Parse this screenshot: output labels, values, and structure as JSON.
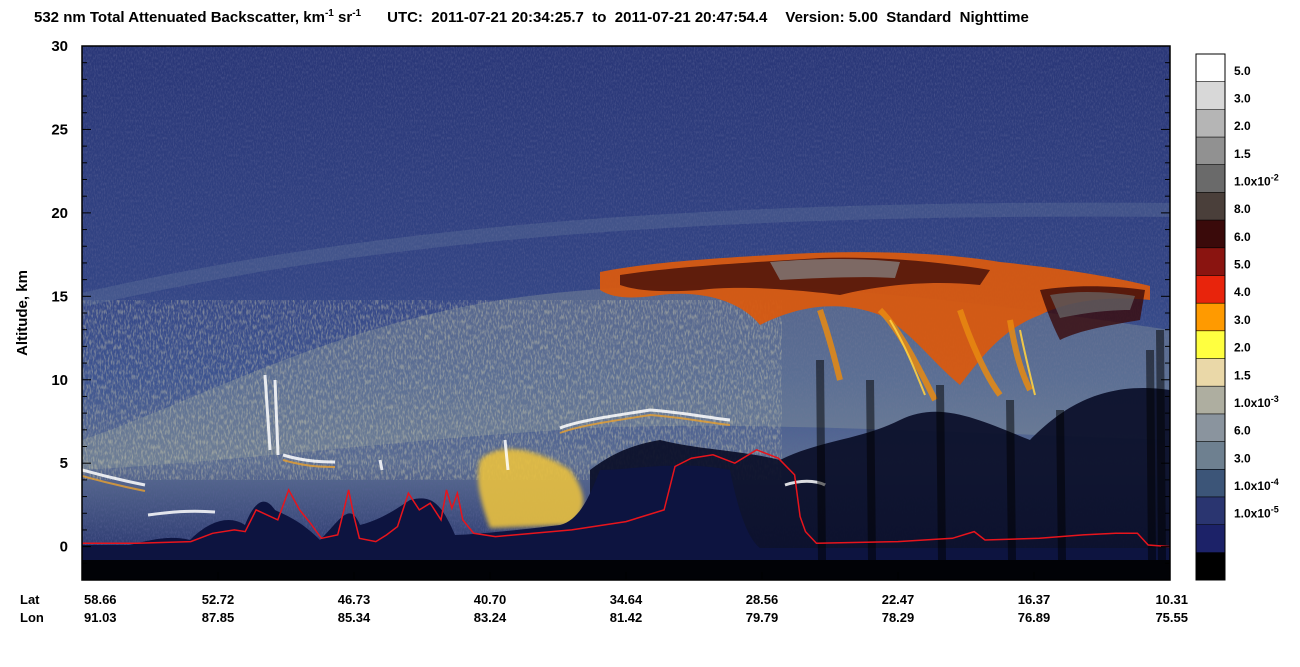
{
  "title": {
    "product_prefix": "532 nm Total Attenuated Backscatter, km",
    "unit_exp1": "-1",
    "unit_mid": " sr",
    "unit_exp2": "-1",
    "utc_label": "UTC:",
    "start_time": "2011-07-21 20:34:25.7",
    "to_word": "to",
    "end_time": "2011-07-21 20:47:54.4",
    "version_label": "Version: 5.00",
    "mode": "Standard",
    "time_of_day": "Nighttime"
  },
  "chart_data": {
    "type": "heatmap",
    "ylabel": "Altitude, km",
    "ylim": [
      -2,
      30
    ],
    "yticks": [
      0,
      5,
      10,
      15,
      20,
      25,
      30
    ],
    "ytick_labels": [
      "0",
      "5",
      "10",
      "15",
      "20",
      "25",
      "30"
    ],
    "x_row_labels": [
      "Lat",
      "Lon"
    ],
    "lat": [
      "58.66",
      "52.72",
      "46.73",
      "40.70",
      "34.64",
      "28.56",
      "22.47",
      "16.37",
      "10.31"
    ],
    "lon": [
      "91.03",
      "87.85",
      "85.34",
      "83.24",
      "81.42",
      "79.79",
      "78.29",
      "76.89",
      "75.55"
    ],
    "surface_line_color": "#e8141c",
    "surface_elevation_km": [
      [
        0.0,
        0.2
      ],
      [
        0.05,
        0.2
      ],
      [
        0.1,
        0.3
      ],
      [
        0.12,
        0.8
      ],
      [
        0.14,
        1.0
      ],
      [
        0.15,
        0.9
      ],
      [
        0.16,
        2.2
      ],
      [
        0.18,
        1.6
      ],
      [
        0.19,
        3.4
      ],
      [
        0.2,
        2.2
      ],
      [
        0.21,
        1.4
      ],
      [
        0.22,
        0.5
      ],
      [
        0.235,
        0.7
      ],
      [
        0.24,
        2.0
      ],
      [
        0.245,
        3.4
      ],
      [
        0.25,
        1.8
      ],
      [
        0.255,
        0.5
      ],
      [
        0.27,
        0.3
      ],
      [
        0.28,
        0.7
      ],
      [
        0.29,
        1.2
      ],
      [
        0.3,
        3.2
      ],
      [
        0.31,
        2.2
      ],
      [
        0.32,
        2.6
      ],
      [
        0.33,
        1.6
      ],
      [
        0.335,
        3.4
      ],
      [
        0.34,
        2.3
      ],
      [
        0.345,
        3.2
      ],
      [
        0.35,
        1.6
      ],
      [
        0.36,
        0.8
      ],
      [
        0.38,
        0.6
      ],
      [
        0.45,
        1.0
      ],
      [
        0.5,
        1.5
      ],
      [
        0.535,
        2.2
      ],
      [
        0.545,
        4.8
      ],
      [
        0.56,
        5.3
      ],
      [
        0.58,
        5.5
      ],
      [
        0.6,
        5.0
      ],
      [
        0.62,
        5.8
      ],
      [
        0.64,
        5.3
      ],
      [
        0.655,
        4.3
      ],
      [
        0.66,
        1.8
      ],
      [
        0.665,
        0.9
      ],
      [
        0.675,
        0.2
      ],
      [
        0.75,
        0.3
      ],
      [
        0.8,
        0.5
      ],
      [
        0.82,
        0.9
      ],
      [
        0.83,
        0.4
      ],
      [
        0.88,
        0.5
      ],
      [
        0.92,
        0.7
      ],
      [
        0.95,
        0.8
      ],
      [
        0.97,
        0.8
      ],
      [
        0.98,
        0.1
      ],
      [
        1.0,
        0.0
      ]
    ]
  },
  "colorbar": {
    "labels": [
      {
        "mant": "5.0",
        "exp": ""
      },
      {
        "mant": "3.0",
        "exp": ""
      },
      {
        "mant": "2.0",
        "exp": ""
      },
      {
        "mant": "1.5",
        "exp": ""
      },
      {
        "mant": "1.0x10",
        "exp": "-2"
      },
      {
        "mant": "8.0",
        "exp": ""
      },
      {
        "mant": "6.0",
        "exp": ""
      },
      {
        "mant": "5.0",
        "exp": ""
      },
      {
        "mant": "4.0",
        "exp": ""
      },
      {
        "mant": "3.0",
        "exp": ""
      },
      {
        "mant": "2.0",
        "exp": ""
      },
      {
        "mant": "1.5",
        "exp": ""
      },
      {
        "mant": "1.0x10",
        "exp": "-3"
      },
      {
        "mant": "6.0",
        "exp": ""
      },
      {
        "mant": "3.0",
        "exp": ""
      },
      {
        "mant": "1.0x10",
        "exp": "-4"
      },
      {
        "mant": "1.0x10",
        "exp": "-5"
      }
    ],
    "colors": [
      "#ffffff",
      "#d8d8d8",
      "#b5b5b5",
      "#919191",
      "#6a6a6a",
      "#4a3f3a",
      "#3a0a0a",
      "#8a1410",
      "#e8240c",
      "#ff9a00",
      "#ffff40",
      "#ead8a8",
      "#aeaea0",
      "#8a949e",
      "#6e8090",
      "#3c5578",
      "#2a3570",
      "#1c2268",
      "#000000"
    ]
  }
}
